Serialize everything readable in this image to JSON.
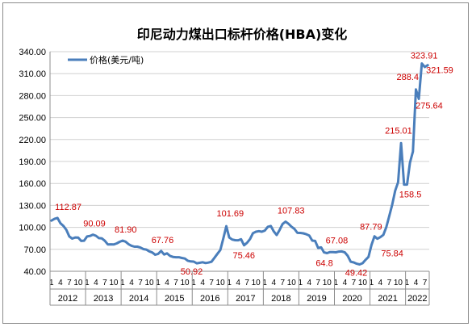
{
  "chart_data": {
    "type": "line",
    "title": "印尼动力煤出口标杆价格(HBA)变化",
    "ylim": [
      40,
      340
    ],
    "yticks": [
      "40.00",
      "70.00",
      "100.00",
      "130.00",
      "160.00",
      "190.00",
      "220.00",
      "250.00",
      "280.00",
      "310.00",
      "340.00"
    ],
    "grid": "horizontal",
    "legend_position": "top-left",
    "series": [
      {
        "name": "价格(美元/吨)",
        "color": "#4a7ebb",
        "values": [
          109.29,
          111.58,
          112.87,
          105.61,
          102.12,
          96.65,
          87.56,
          84.65,
          86.21,
          86.04,
          81.44,
          81.75,
          87.55,
          88.35,
          90.09,
          88.56,
          85.33,
          84.87,
          81.69,
          76.7,
          76.89,
          76.61,
          78.09,
          80.31,
          81.9,
          80.44,
          77.01,
          74.81,
          73.6,
          73.64,
          72.45,
          70.29,
          69.69,
          67.26,
          65.7,
          62.65,
          63.84,
          67.76,
          62.92,
          64.48,
          61.08,
          59.59,
          59.16,
          59.14,
          58.21,
          57.39,
          54.43,
          53.51,
          53.2,
          50.92,
          51.62,
          52.32,
          51.2,
          51.87,
          53.0,
          58.37,
          63.93,
          69.07,
          84.89,
          101.69,
          86.23,
          83.32,
          82.51,
          82.32,
          83.81,
          75.46,
          78.95,
          83.97,
          92.03,
          93.99,
          94.8,
          94.04,
          95.54,
          100.69,
          101.86,
          94.75,
          89.53,
          96.61,
          104.65,
          107.83,
          104.81,
          100.89,
          97.9,
          92.51,
          92.41,
          91.8,
          90.57,
          88.85,
          81.86,
          81.48,
          71.92,
          72.67,
          65.79,
          64.8,
          66.27,
          66.3,
          65.93,
          66.89,
          67.08,
          65.77,
          61.11,
          52.98,
          52.16,
          50.34,
          49.42,
          51.0,
          55.71,
          59.65,
          75.84,
          87.79,
          84.47,
          86.68,
          89.74,
          100.33,
          115.35,
          130.99,
          150.03,
          161.63,
          215.01,
          158.5,
          158.5,
          188.38,
          203.69,
          288.4,
          275.64,
          323.91,
          319.0,
          321.59
        ]
      }
    ],
    "x_labels_pattern": [
      "1",
      "4",
      "7",
      "10"
    ],
    "years": [
      "2012",
      "2013",
      "2014",
      "2015",
      "2016",
      "2017",
      "2018",
      "2019",
      "2020",
      "2021",
      "2022"
    ],
    "annotations": [
      {
        "index": 2,
        "text": "112.87"
      },
      {
        "index": 14,
        "text": "90.09"
      },
      {
        "index": 24,
        "text": "81.90"
      },
      {
        "index": 37,
        "text": "67.76"
      },
      {
        "index": 49,
        "text": "50.92"
      },
      {
        "index": 59,
        "text": "101.69"
      },
      {
        "index": 65,
        "text": "75.46"
      },
      {
        "index": 79,
        "text": "107.83"
      },
      {
        "index": 93,
        "text": "64.8"
      },
      {
        "index": 98,
        "text": "67.08"
      },
      {
        "index": 104,
        "text": "49.42"
      },
      {
        "index": 109,
        "text": "87.79"
      },
      {
        "index": 108,
        "text": "75.84"
      },
      {
        "index": 118,
        "text": "215.01"
      },
      {
        "index": 119,
        "text": "158.5"
      },
      {
        "index": 123,
        "text": "288.4"
      },
      {
        "index": 124,
        "text": "275.64"
      },
      {
        "index": 125,
        "text": "323.91"
      },
      {
        "index": 127,
        "text": "321.59"
      }
    ]
  }
}
